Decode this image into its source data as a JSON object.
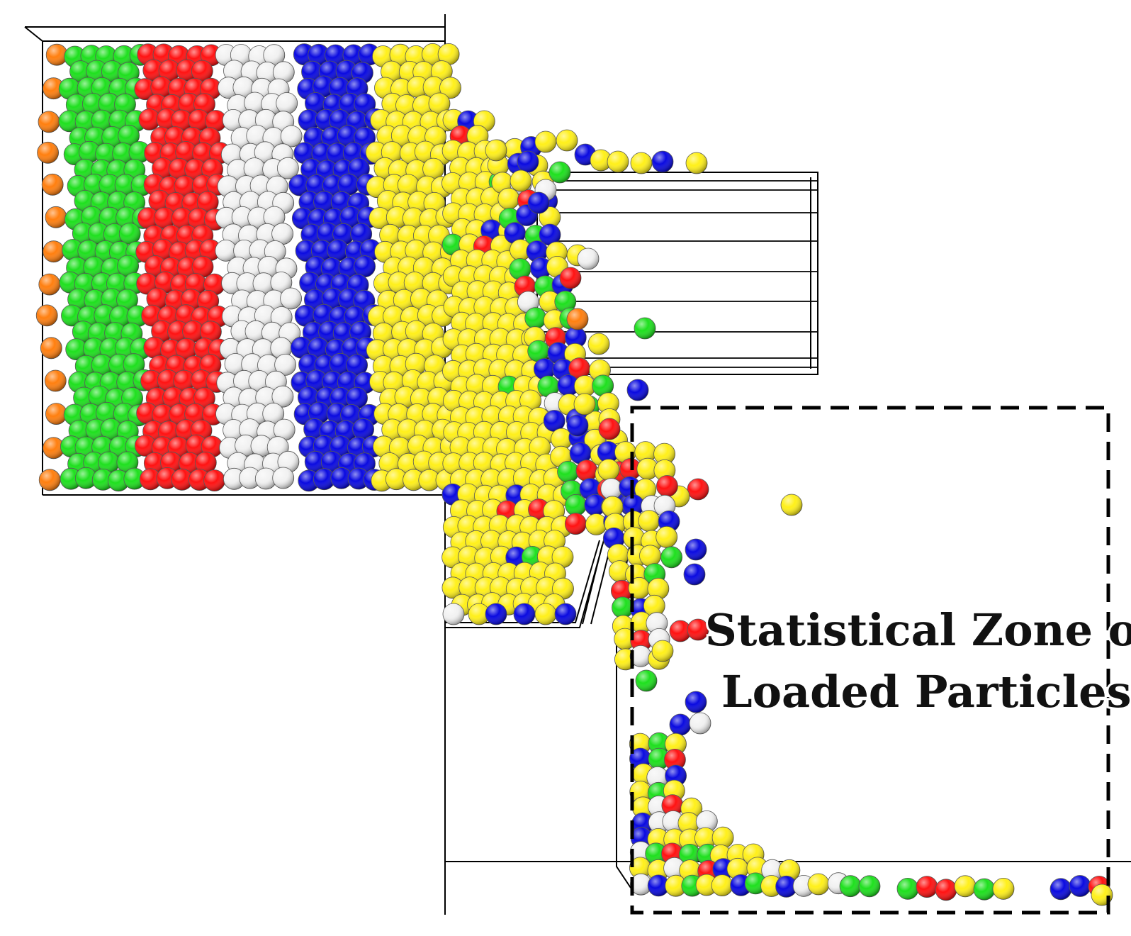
{
  "figure": {
    "zone_label_line1": "Statistical Zone of",
    "zone_label_line2": "Loaded Particles"
  },
  "particle_colors": {
    "orange": "#ff7f0f",
    "green": "#1ee01e",
    "red": "#ff1212",
    "white": "#f2f2f2",
    "blue": "#0a0ae0",
    "yellow": "#fff01a"
  },
  "layer_order": [
    "orange",
    "green",
    "red",
    "white",
    "blue",
    "yellow"
  ],
  "structure_color": "#000000",
  "zone_border_color": "#000000"
}
